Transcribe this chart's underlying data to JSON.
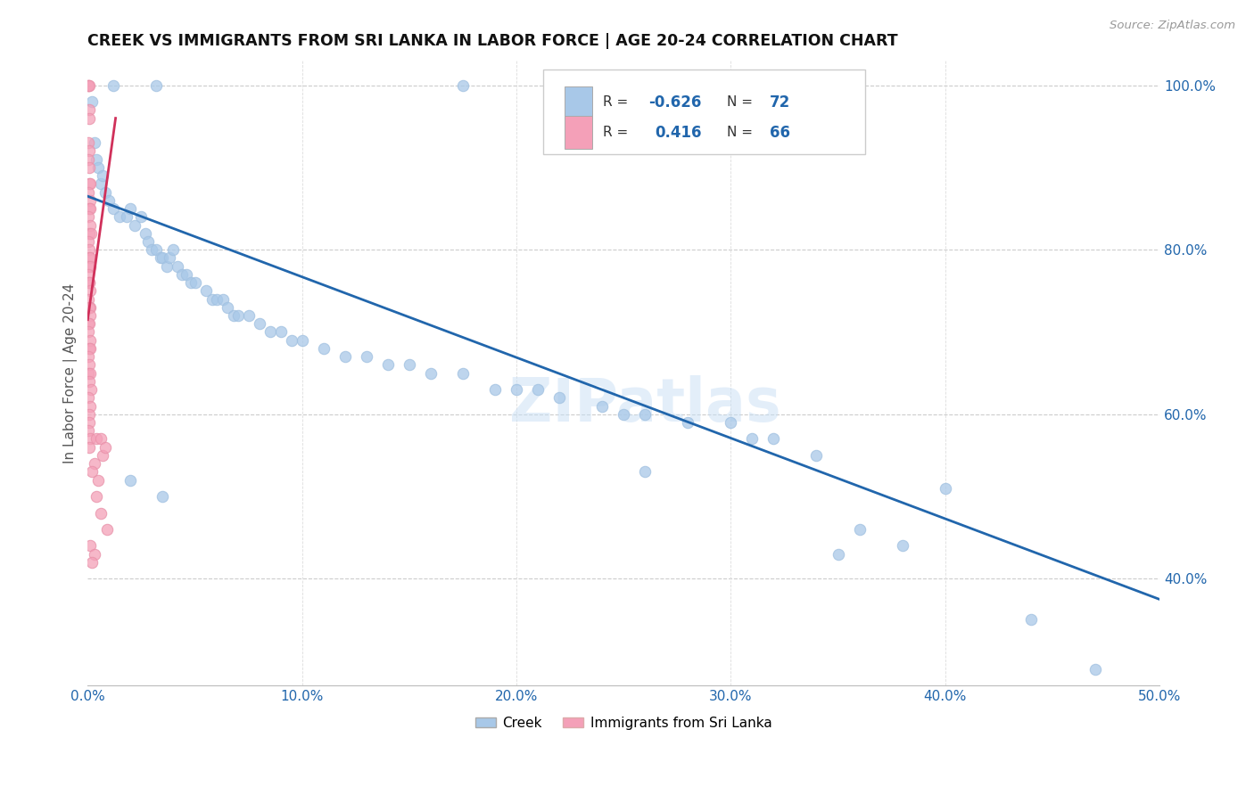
{
  "title": "CREEK VS IMMIGRANTS FROM SRI LANKA IN LABOR FORCE | AGE 20-24 CORRELATION CHART",
  "source": "Source: ZipAtlas.com",
  "ylabel": "In Labor Force | Age 20-24",
  "x_min": 0.0,
  "x_max": 0.5,
  "y_min": 0.27,
  "y_max": 1.03,
  "x_ticks": [
    0.0,
    0.1,
    0.2,
    0.3,
    0.4,
    0.5
  ],
  "x_tick_labels": [
    "0.0%",
    "10.0%",
    "20.0%",
    "30.0%",
    "40.0%",
    "50.0%"
  ],
  "y_ticks": [
    0.4,
    0.6,
    0.8,
    1.0
  ],
  "y_tick_labels": [
    "40.0%",
    "60.0%",
    "80.0%",
    "100.0%"
  ],
  "blue_color": "#a8c8e8",
  "pink_color": "#f4a0b8",
  "blue_line_color": "#2166ac",
  "pink_line_color": "#d0305a",
  "watermark": "ZIPatlas",
  "label_creek": "Creek",
  "label_srilanka": "Immigrants from Sri Lanka",
  "blue_dots": [
    [
      0.002,
      0.98
    ],
    [
      0.012,
      1.0
    ],
    [
      0.032,
      1.0
    ],
    [
      0.175,
      1.0
    ],
    [
      0.27,
      1.0
    ],
    [
      0.003,
      0.93
    ],
    [
      0.004,
      0.91
    ],
    [
      0.005,
      0.9
    ],
    [
      0.006,
      0.88
    ],
    [
      0.007,
      0.89
    ],
    [
      0.008,
      0.87
    ],
    [
      0.01,
      0.86
    ],
    [
      0.012,
      0.85
    ],
    [
      0.015,
      0.84
    ],
    [
      0.018,
      0.84
    ],
    [
      0.02,
      0.85
    ],
    [
      0.022,
      0.83
    ],
    [
      0.025,
      0.84
    ],
    [
      0.027,
      0.82
    ],
    [
      0.028,
      0.81
    ],
    [
      0.03,
      0.8
    ],
    [
      0.032,
      0.8
    ],
    [
      0.034,
      0.79
    ],
    [
      0.035,
      0.79
    ],
    [
      0.037,
      0.78
    ],
    [
      0.038,
      0.79
    ],
    [
      0.04,
      0.8
    ],
    [
      0.042,
      0.78
    ],
    [
      0.044,
      0.77
    ],
    [
      0.046,
      0.77
    ],
    [
      0.048,
      0.76
    ],
    [
      0.05,
      0.76
    ],
    [
      0.055,
      0.75
    ],
    [
      0.058,
      0.74
    ],
    [
      0.06,
      0.74
    ],
    [
      0.063,
      0.74
    ],
    [
      0.065,
      0.73
    ],
    [
      0.068,
      0.72
    ],
    [
      0.07,
      0.72
    ],
    [
      0.075,
      0.72
    ],
    [
      0.08,
      0.71
    ],
    [
      0.085,
      0.7
    ],
    [
      0.09,
      0.7
    ],
    [
      0.095,
      0.69
    ],
    [
      0.1,
      0.69
    ],
    [
      0.11,
      0.68
    ],
    [
      0.12,
      0.67
    ],
    [
      0.13,
      0.67
    ],
    [
      0.14,
      0.66
    ],
    [
      0.15,
      0.66
    ],
    [
      0.16,
      0.65
    ],
    [
      0.175,
      0.65
    ],
    [
      0.19,
      0.63
    ],
    [
      0.2,
      0.63
    ],
    [
      0.21,
      0.63
    ],
    [
      0.22,
      0.62
    ],
    [
      0.24,
      0.61
    ],
    [
      0.25,
      0.6
    ],
    [
      0.26,
      0.6
    ],
    [
      0.28,
      0.59
    ],
    [
      0.3,
      0.59
    ],
    [
      0.32,
      0.57
    ],
    [
      0.34,
      0.55
    ],
    [
      0.26,
      0.53
    ],
    [
      0.31,
      0.57
    ],
    [
      0.02,
      0.52
    ],
    [
      0.035,
      0.5
    ],
    [
      0.36,
      0.46
    ],
    [
      0.38,
      0.44
    ],
    [
      0.35,
      0.43
    ],
    [
      0.4,
      0.51
    ],
    [
      0.44,
      0.35
    ],
    [
      0.47,
      0.29
    ]
  ],
  "pink_dots": [
    [
      0.0002,
      1.0
    ],
    [
      0.0004,
      1.0
    ],
    [
      0.0006,
      1.0
    ],
    [
      0.0005,
      0.97
    ],
    [
      0.0008,
      0.96
    ],
    [
      0.0003,
      0.93
    ],
    [
      0.0007,
      0.92
    ],
    [
      0.0002,
      0.91
    ],
    [
      0.0005,
      0.9
    ],
    [
      0.0006,
      0.88
    ],
    [
      0.001,
      0.88
    ],
    [
      0.0004,
      0.87
    ],
    [
      0.001,
      0.86
    ],
    [
      0.0007,
      0.85
    ],
    [
      0.0012,
      0.85
    ],
    [
      0.0003,
      0.84
    ],
    [
      0.0009,
      0.83
    ],
    [
      0.0005,
      0.82
    ],
    [
      0.0014,
      0.82
    ],
    [
      0.0002,
      0.81
    ],
    [
      0.0008,
      0.8
    ],
    [
      0.0006,
      0.79
    ],
    [
      0.0012,
      0.79
    ],
    [
      0.0004,
      0.78
    ],
    [
      0.001,
      0.78
    ],
    [
      0.0003,
      0.77
    ],
    [
      0.0008,
      0.76
    ],
    [
      0.0005,
      0.76
    ],
    [
      0.0011,
      0.75
    ],
    [
      0.0002,
      0.74
    ],
    [
      0.0009,
      0.73
    ],
    [
      0.0006,
      0.73
    ],
    [
      0.0013,
      0.72
    ],
    [
      0.0003,
      0.71
    ],
    [
      0.0007,
      0.71
    ],
    [
      0.0004,
      0.7
    ],
    [
      0.001,
      0.69
    ],
    [
      0.0005,
      0.68
    ],
    [
      0.0012,
      0.68
    ],
    [
      0.0002,
      0.67
    ],
    [
      0.0008,
      0.66
    ],
    [
      0.0004,
      0.65
    ],
    [
      0.001,
      0.65
    ],
    [
      0.0006,
      0.64
    ],
    [
      0.0014,
      0.63
    ],
    [
      0.0003,
      0.62
    ],
    [
      0.0009,
      0.61
    ],
    [
      0.0005,
      0.6
    ],
    [
      0.0007,
      0.59
    ],
    [
      0.0004,
      0.58
    ],
    [
      0.0011,
      0.57
    ],
    [
      0.0006,
      0.56
    ],
    [
      0.004,
      0.57
    ],
    [
      0.006,
      0.57
    ],
    [
      0.007,
      0.55
    ],
    [
      0.003,
      0.54
    ],
    [
      0.008,
      0.56
    ],
    [
      0.002,
      0.53
    ],
    [
      0.005,
      0.52
    ],
    [
      0.004,
      0.5
    ],
    [
      0.006,
      0.48
    ],
    [
      0.009,
      0.46
    ],
    [
      0.001,
      0.44
    ],
    [
      0.003,
      0.43
    ],
    [
      0.002,
      0.42
    ]
  ],
  "blue_trend_x": [
    0.0,
    0.5
  ],
  "blue_trend_y": [
    0.865,
    0.375
  ],
  "pink_trend_x": [
    0.0,
    0.013
  ],
  "pink_trend_y": [
    0.715,
    0.96
  ]
}
